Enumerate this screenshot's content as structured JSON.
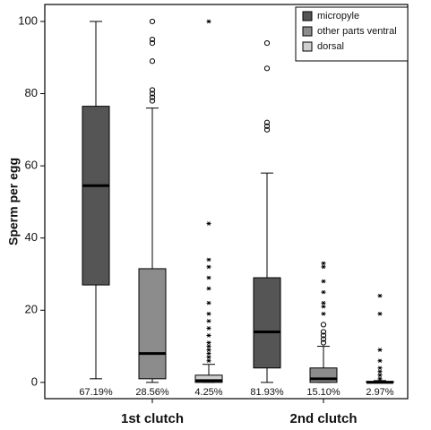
{
  "chart_data": {
    "type": "boxplot",
    "ylabel": "Sperm per egg",
    "categories": [
      "1st clutch",
      "2nd clutch"
    ],
    "ylim": [
      -4.5,
      104.7
    ],
    "yticks": [
      0,
      20,
      40,
      60,
      80,
      100
    ],
    "legend": "upper right",
    "series": [
      {
        "name": "micropyle",
        "color": "#555555",
        "boxes": [
          {
            "whislo": 1,
            "q1": 27,
            "med": 54.5,
            "q3": 76.5,
            "whishi": 100,
            "outliers": [],
            "extremes": [],
            "label": "67.19%"
          },
          {
            "whislo": 0,
            "q1": 4,
            "med": 14,
            "q3": 29,
            "whishi": 58,
            "outliers": [
              70,
              71,
              72,
              87,
              94
            ],
            "extremes": [],
            "label": "81.93%"
          }
        ]
      },
      {
        "name": "other parts ventral",
        "color": "#8c8c8c",
        "boxes": [
          {
            "whislo": 0,
            "q1": 1,
            "med": 8,
            "q3": 31.5,
            "whishi": 76,
            "outliers": [
              78,
              79,
              80,
              81,
              89,
              94,
              95,
              100
            ],
            "extremes": [],
            "label": "28.56%"
          },
          {
            "whislo": 0,
            "q1": 0,
            "med": 1,
            "q3": 4,
            "whishi": 10,
            "outliers": [
              11,
              12,
              13,
              14,
              16
            ],
            "extremes": [
              19,
              21,
              22,
              25,
              28,
              32,
              33
            ],
            "label": "15.10%"
          }
        ]
      },
      {
        "name": "dorsal",
        "color": "#cfcfcf",
        "boxes": [
          {
            "whislo": 0,
            "q1": 0,
            "med": 0.5,
            "q3": 2,
            "whishi": 5,
            "outliers": [],
            "extremes": [
              6,
              7,
              8,
              9,
              10,
              11,
              13,
              15,
              17,
              19,
              22,
              26,
              29,
              32,
              34,
              44,
              100
            ],
            "label": "4.25%"
          },
          {
            "whislo": 0,
            "q1": 0,
            "med": 0,
            "q3": 0.3,
            "whishi": 0.5,
            "outliers": [],
            "extremes": [
              1,
              2,
              3,
              4,
              6,
              9,
              19,
              24
            ],
            "label": "2.97%"
          }
        ]
      }
    ]
  }
}
